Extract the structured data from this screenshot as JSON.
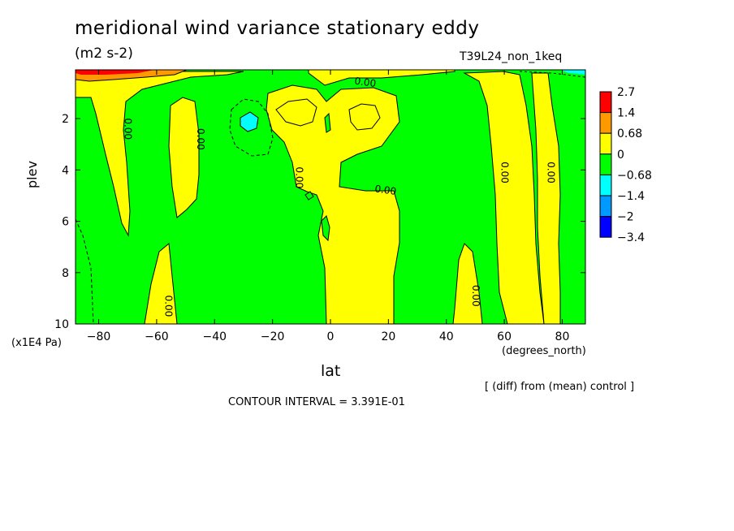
{
  "chart_data": {
    "type": "contour",
    "title": "meridional wind variance  stationary eddy",
    "units_label": "(m2 s-2)",
    "run_label": "T39L24_non_1keq",
    "xlabel": "lat",
    "x_units": "(degrees_north)",
    "ylabel": "plev",
    "y_units": "(x1E4 Pa)",
    "x_ticks": [
      -80,
      -60,
      -40,
      -20,
      0,
      20,
      40,
      60,
      80
    ],
    "x_tick_labels": [
      "−80",
      "−60",
      "−40",
      "−20",
      "0",
      "20",
      "40",
      "60",
      "80"
    ],
    "y_ticks": [
      2,
      4,
      6,
      8,
      10
    ],
    "y_tick_labels": [
      "2",
      "4",
      "6",
      "8",
      "10"
    ],
    "xlim": [
      -88,
      88
    ],
    "ylim": [
      10,
      0.1
    ],
    "y_inverted": true,
    "colorbar": {
      "levels": [
        2.7,
        1.4,
        0.68,
        0,
        -0.68,
        -1.4,
        -2,
        -3.4
      ],
      "labels": [
        "2.7",
        "1.4",
        "0.68",
        "0",
        "−0.68",
        "−1.4",
        "−2",
        "−3.4"
      ],
      "colors": [
        "#ff0000",
        "#ff9900",
        "#ffff00",
        "#00ff00",
        "#00ffff",
        "#0099ff",
        "#0000ff"
      ]
    },
    "contour_labels": [
      {
        "text": "0.00",
        "lat": 12,
        "plev": 0.6
      },
      {
        "text": "0.00",
        "lat": -70,
        "plev": 2.4
      },
      {
        "text": "0.00",
        "lat": -45,
        "plev": 2.8
      },
      {
        "text": "0.00",
        "lat": -11,
        "plev": 4.3
      },
      {
        "text": "0.00",
        "lat": 19,
        "plev": 4.8
      },
      {
        "text": "0.00",
        "lat": 60,
        "plev": 4.1
      },
      {
        "text": "0.00",
        "lat": 76,
        "plev": 4.1
      },
      {
        "text": "0.00",
        "lat": -56,
        "plev": 9.3
      },
      {
        "text": "0.00",
        "lat": 50,
        "plev": 8.9
      }
    ],
    "note": "[ (diff) from (mean) control ]",
    "contour_interval": "CONTOUR INTERVAL = 3.391E-01"
  }
}
